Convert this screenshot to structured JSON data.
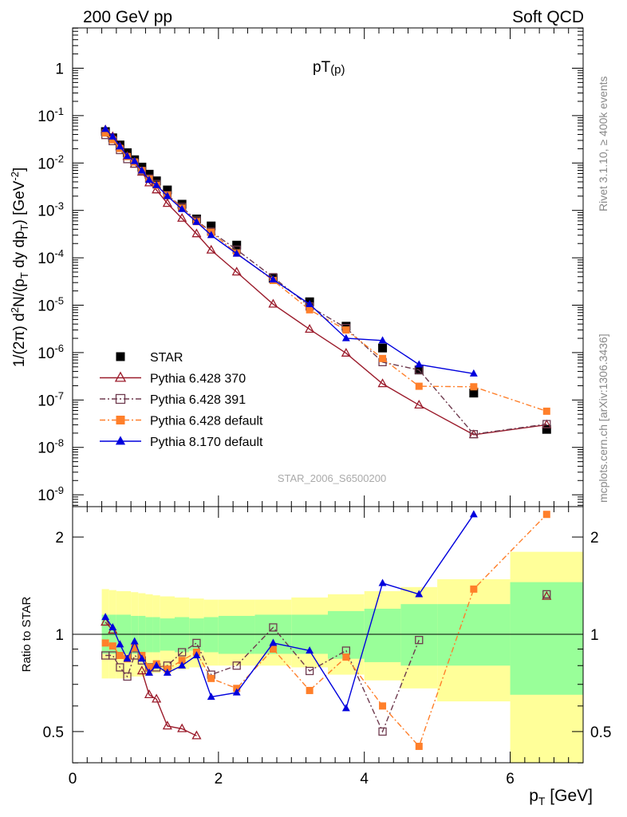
{
  "header": {
    "left": "200 GeV pp",
    "right": "Soft QCD"
  },
  "side_labels": {
    "rivet": "Rivet 3.1.10, ≥ 400k events",
    "mcplots": "mcplots.cern.ch [arXiv:1306.3436]"
  },
  "top_panel": {
    "title": "pT(p)",
    "ylabel": "1/(2π) d²N/(p_T dy dp_T) [GeV⁻²]",
    "watermark": "STAR_2006_S6500200",
    "ytick_labels": [
      "1",
      "10⁻¹",
      "10⁻²",
      "10⁻³",
      "10⁻⁴",
      "10⁻⁵",
      "10⁻⁶",
      "10⁻⁷",
      "10⁻⁸",
      "10⁻⁹"
    ]
  },
  "bottom_panel": {
    "ylabel": "Ratio to STAR",
    "ytick_labels": [
      "0.5",
      "1",
      "2"
    ]
  },
  "x_axis": {
    "label": "p_T [GeV]",
    "tick_labels": [
      "0",
      "2",
      "4",
      "6"
    ]
  },
  "legend": [
    {
      "name": "STAR",
      "color": "#000000",
      "marker": "filled-square",
      "line": "none"
    },
    {
      "name": "Pythia 6.428 370",
      "color": "#9b1b2b",
      "marker": "open-triangle",
      "line": "solid"
    },
    {
      "name": "Pythia 6.428 391",
      "color": "#6e3a4e",
      "marker": "open-square",
      "line": "dash-dot"
    },
    {
      "name": "Pythia 6.428 default",
      "color": "#ff7f2a",
      "marker": "filled-square",
      "line": "dash-dot"
    },
    {
      "name": "Pythia 8.170 default",
      "color": "#0000dd",
      "marker": "filled-triangle",
      "line": "solid"
    }
  ],
  "chart_data": {
    "type": "scatter",
    "title": "pT(p)",
    "xlabel": "p_T [GeV]",
    "ylabel": "1/(2π) d²N/(p_T dy dp_T) [GeV⁻²]",
    "xlim": [
      0,
      7.0
    ],
    "ylim_log10": [
      -9.25,
      0.85
    ],
    "ratio_ylabel": "Ratio to STAR",
    "ratio_ylim": [
      0.4,
      2.35
    ],
    "y_scale": "log",
    "ratio_y_scale": "log",
    "x": [
      0.45,
      0.55,
      0.65,
      0.75,
      0.85,
      0.95,
      1.05,
      1.15,
      1.3,
      1.5,
      1.7,
      1.9,
      2.25,
      2.75,
      3.25,
      3.75,
      4.25,
      4.75,
      5.5,
      6.5
    ],
    "series": [
      {
        "name": "STAR",
        "values": [
          0.046,
          0.034,
          0.024,
          0.0165,
          0.0117,
          0.0082,
          0.0058,
          0.0042,
          0.0027,
          0.00135,
          0.00066,
          0.00047,
          0.000185,
          3.7e-05,
          1.18e-05,
          3.6e-06,
          1.25e-06,
          4.3e-07,
          1.4e-07,
          2.4e-08
        ]
      },
      {
        "name": "Pythia 6.428 370",
        "values": [
          0.05,
          0.036,
          0.022,
          0.0138,
          0.0094,
          0.0064,
          0.0038,
          0.0027,
          0.0014,
          0.00068,
          0.00032,
          0.000145,
          5e-05,
          1.05e-05,
          3.1e-06,
          9.7e-07,
          2.2e-07,
          7.8e-08,
          1.85e-08,
          3e-08
        ],
        "ratio": [
          1.09,
          1.03,
          null,
          null,
          null,
          0.77,
          0.65,
          0.63,
          0.52,
          0.51,
          0.485,
          null,
          null,
          null,
          null,
          null,
          null,
          null,
          null,
          1.31
        ]
      },
      {
        "name": "Pythia 6.428 391",
        "values": [
          0.039,
          0.029,
          0.0188,
          0.0121,
          0.0097,
          0.0068,
          0.0047,
          0.0036,
          0.0021,
          0.00118,
          0.00061,
          0.000356,
          0.000148,
          3.89e-05,
          9.4e-06,
          3.3e-06,
          6.3e-07,
          4.3e-07,
          1.9e-08,
          3.1e-08
        ],
        "ratio": [
          0.86,
          0.86,
          0.79,
          0.74,
          0.86,
          0.83,
          0.79,
          0.79,
          0.8,
          0.88,
          0.94,
          0.75,
          0.8,
          1.05,
          0.77,
          0.89,
          0.5,
          0.96,
          null,
          1.33
        ]
      },
      {
        "name": "Pythia 6.428 default",
        "values": [
          0.043,
          0.031,
          0.0203,
          0.0137,
          0.0105,
          0.0069,
          0.0046,
          0.0034,
          0.0021,
          0.00112,
          0.00058,
          0.000345,
          0.000126,
          3.33e-05,
          8e-06,
          3e-06,
          7.5e-07,
          1.95e-07,
          1.9e-07,
          5.8e-08
        ],
        "ratio": [
          0.94,
          0.92,
          0.86,
          0.84,
          0.91,
          0.86,
          0.79,
          0.81,
          0.78,
          0.83,
          0.88,
          0.73,
          0.68,
          0.9,
          0.67,
          0.85,
          0.6,
          0.45,
          1.38,
          2.35
        ]
      },
      {
        "name": "Pythia 8.170 default",
        "values": [
          0.052,
          0.036,
          0.0223,
          0.0139,
          0.0109,
          0.0069,
          0.0044,
          0.0034,
          0.002,
          0.00106,
          0.00057,
          0.0003,
          0.000122,
          3.48e-05,
          1.05e-05,
          2e-06,
          1.8e-06,
          5.6e-07,
          3.6e-07,
          null
        ],
        "ratio": [
          1.13,
          1.05,
          0.93,
          0.84,
          0.95,
          0.84,
          0.76,
          0.8,
          0.76,
          0.8,
          0.86,
          0.64,
          0.66,
          0.94,
          0.89,
          0.59,
          1.44,
          1.33,
          2.35,
          null
        ]
      }
    ],
    "uncertainty_bands": {
      "x_edges": [
        0.4,
        0.5,
        0.6,
        0.7,
        0.8,
        0.9,
        1.0,
        1.1,
        1.2,
        1.4,
        1.6,
        1.8,
        2.0,
        2.5,
        3.0,
        3.5,
        4.0,
        4.5,
        5.0,
        6.0,
        7.0
      ],
      "stat_lower": [
        0.87,
        0.87,
        0.87,
        0.87,
        0.87,
        0.87,
        0.88,
        0.88,
        0.89,
        0.88,
        0.89,
        0.88,
        0.87,
        0.87,
        0.87,
        0.84,
        0.82,
        0.8,
        0.8,
        0.65
      ],
      "stat_upper": [
        1.15,
        1.15,
        1.15,
        1.15,
        1.14,
        1.14,
        1.13,
        1.13,
        1.12,
        1.13,
        1.12,
        1.13,
        1.14,
        1.15,
        1.15,
        1.18,
        1.2,
        1.24,
        1.24,
        1.45
      ],
      "total_lower": [
        0.73,
        0.73,
        0.73,
        0.73,
        0.74,
        0.74,
        0.75,
        0.76,
        0.77,
        0.78,
        0.79,
        0.8,
        0.8,
        0.8,
        0.79,
        0.75,
        0.72,
        0.68,
        0.62,
        0.33
      ],
      "total_upper": [
        1.38,
        1.37,
        1.36,
        1.36,
        1.35,
        1.34,
        1.33,
        1.32,
        1.31,
        1.3,
        1.29,
        1.28,
        1.28,
        1.28,
        1.3,
        1.33,
        1.36,
        1.4,
        1.48,
        1.8
      ]
    },
    "grid": false,
    "legend_position": "bottom-left"
  }
}
